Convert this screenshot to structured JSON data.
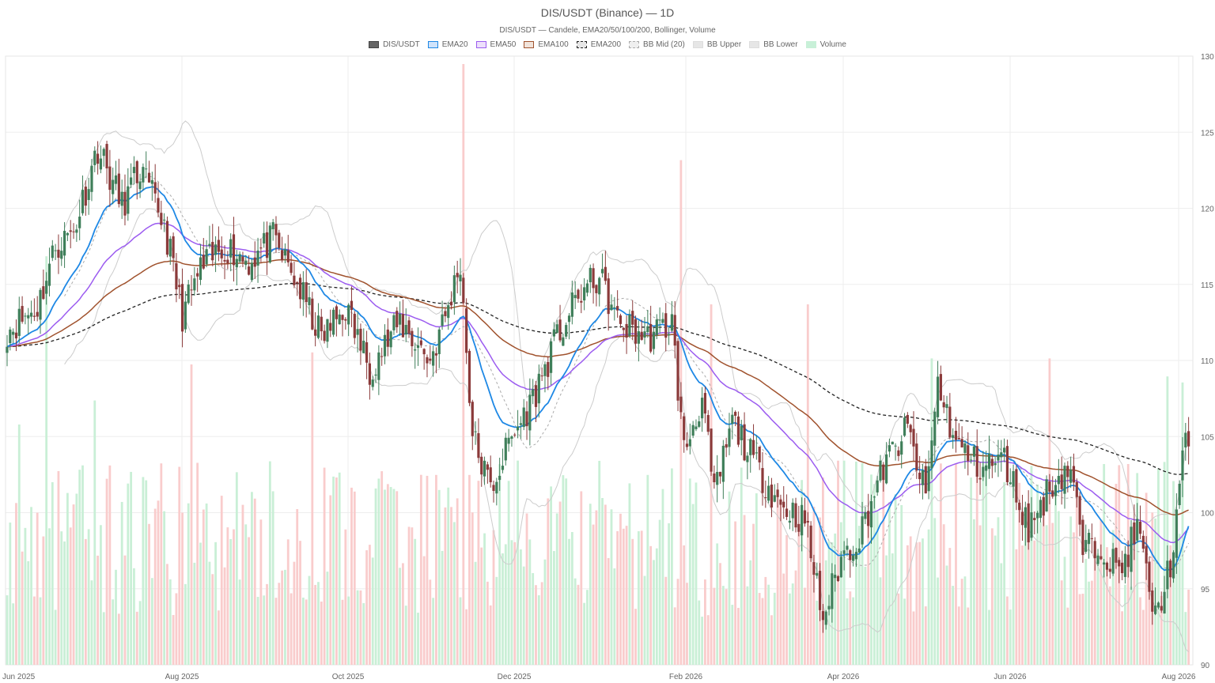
{
  "chart_data": {
    "type": "candlestick",
    "title": "DIS/USDT (Binance) — 1D",
    "subtitle": "DIS/USDT — Candele, EMA20/50/100/200, Bollinger, Volume",
    "legend": [
      {
        "label": "DIS/USDT",
        "fill": "#666666",
        "stroke": "#444444",
        "dashed": false
      },
      {
        "label": "EMA20",
        "fill": "#cfe3fb",
        "stroke": "#1e88e5",
        "dashed": false
      },
      {
        "label": "EMA50",
        "fill": "#ede0fb",
        "stroke": "#9c5cf0",
        "dashed": false
      },
      {
        "label": "EMA100",
        "fill": "#f1e3da",
        "stroke": "#a0522d",
        "dashed": false
      },
      {
        "label": "EMA200",
        "fill": "#e6e6e6",
        "stroke": "#222222",
        "dashed": true
      },
      {
        "label": "BB Mid (20)",
        "fill": "#efefef",
        "stroke": "#aaaaaa",
        "dashed": true
      },
      {
        "label": "BB Upper",
        "fill": "#e6e6e6",
        "stroke": "#dddddd",
        "dashed": false
      },
      {
        "label": "BB Lower",
        "fill": "#e6e6e6",
        "stroke": "#dddddd",
        "dashed": false
      },
      {
        "label": "Volume",
        "fill": "#c8f0d8",
        "stroke": "#c8f0d8",
        "dashed": false
      }
    ],
    "colors": {
      "up": "#3f7f5a",
      "down": "#8b3a3a",
      "vol_up": "#c9efd6",
      "vol_down": "#f9cccc"
    },
    "x_ticks": [
      "Jun 2025",
      "Aug 2025",
      "Oct 2025",
      "Dec 2025",
      "Feb 2026",
      "Apr 2026",
      "Jun 2026",
      "Aug 2026"
    ],
    "y_ticks": [
      "130",
      "125",
      "120",
      "115",
      "110",
      "105",
      "100",
      "95",
      "90"
    ],
    "ylim": [
      90,
      130
    ],
    "grid": true,
    "legend_position": "top-center",
    "price_anchors": [
      {
        "d": 0,
        "v": 112.0
      },
      {
        "d": 10,
        "v": 113.5
      },
      {
        "d": 16,
        "v": 117.5
      },
      {
        "d": 22,
        "v": 118.5
      },
      {
        "d": 30,
        "v": 124.0
      },
      {
        "d": 38,
        "v": 120.2
      },
      {
        "d": 44,
        "v": 122.5
      },
      {
        "d": 52,
        "v": 119.0
      },
      {
        "d": 58,
        "v": 113.0
      },
      {
        "d": 64,
        "v": 116.0
      },
      {
        "d": 72,
        "v": 117.5
      },
      {
        "d": 80,
        "v": 116.5
      },
      {
        "d": 88,
        "v": 118.0
      },
      {
        "d": 96,
        "v": 115.0
      },
      {
        "d": 104,
        "v": 111.5
      },
      {
        "d": 112,
        "v": 113.5
      },
      {
        "d": 120,
        "v": 109.5
      },
      {
        "d": 130,
        "v": 112.5
      },
      {
        "d": 140,
        "v": 110.0
      },
      {
        "d": 146,
        "v": 113.5
      },
      {
        "d": 150,
        "v": 116.5
      },
      {
        "d": 154,
        "v": 105.0
      },
      {
        "d": 160,
        "v": 101.5
      },
      {
        "d": 166,
        "v": 104.5
      },
      {
        "d": 174,
        "v": 107.5
      },
      {
        "d": 182,
        "v": 111.5
      },
      {
        "d": 190,
        "v": 114.5
      },
      {
        "d": 196,
        "v": 115.5
      },
      {
        "d": 202,
        "v": 112.5
      },
      {
        "d": 212,
        "v": 111.5
      },
      {
        "d": 220,
        "v": 112.5
      },
      {
        "d": 224,
        "v": 104.0
      },
      {
        "d": 230,
        "v": 107.5
      },
      {
        "d": 234,
        "v": 101.0
      },
      {
        "d": 240,
        "v": 106.0
      },
      {
        "d": 248,
        "v": 103.0
      },
      {
        "d": 256,
        "v": 100.5
      },
      {
        "d": 264,
        "v": 99.5
      },
      {
        "d": 270,
        "v": 93.0
      },
      {
        "d": 276,
        "v": 97.0
      },
      {
        "d": 282,
        "v": 98.5
      },
      {
        "d": 290,
        "v": 103.0
      },
      {
        "d": 298,
        "v": 105.5
      },
      {
        "d": 304,
        "v": 101.0
      },
      {
        "d": 308,
        "v": 108.5
      },
      {
        "d": 314,
        "v": 104.5
      },
      {
        "d": 322,
        "v": 103.0
      },
      {
        "d": 330,
        "v": 103.5
      },
      {
        "d": 338,
        "v": 99.0
      },
      {
        "d": 346,
        "v": 102.0
      },
      {
        "d": 352,
        "v": 103.0
      },
      {
        "d": 356,
        "v": 97.5
      },
      {
        "d": 362,
        "v": 98.0
      },
      {
        "d": 368,
        "v": 96.0
      },
      {
        "d": 374,
        "v": 99.0
      },
      {
        "d": 380,
        "v": 93.0
      },
      {
        "d": 386,
        "v": 97.5
      },
      {
        "d": 390,
        "v": 105.0
      }
    ],
    "volume_spikes": [
      {
        "d": 4,
        "v": 0.4
      },
      {
        "d": 13,
        "v": 0.68
      },
      {
        "d": 29,
        "v": 0.44
      },
      {
        "d": 61,
        "v": 0.5
      },
      {
        "d": 101,
        "v": 0.52
      },
      {
        "d": 151,
        "v": 1.0
      },
      {
        "d": 223,
        "v": 0.84
      },
      {
        "d": 233,
        "v": 0.6
      },
      {
        "d": 265,
        "v": 0.6
      },
      {
        "d": 306,
        "v": 0.51
      },
      {
        "d": 345,
        "v": 0.51
      },
      {
        "d": 384,
        "v": 0.48
      },
      {
        "d": 389,
        "v": 0.47
      }
    ],
    "volume_max": 1.0
  }
}
